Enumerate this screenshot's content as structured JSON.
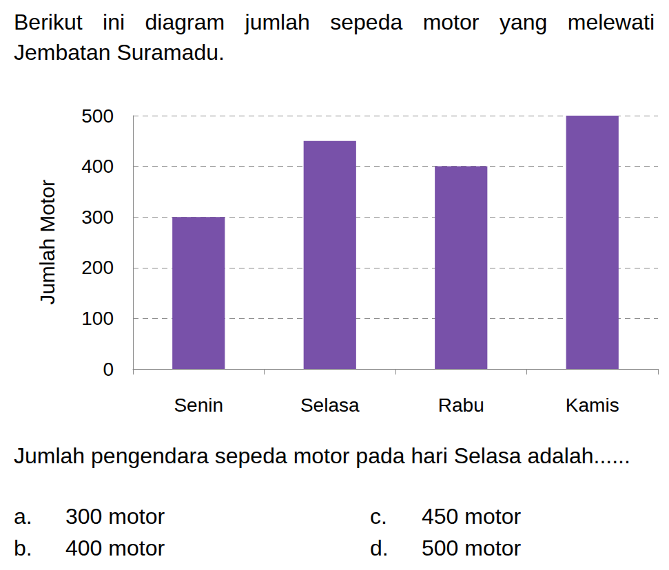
{
  "intro": "Berikut ini diagram jumlah sepeda motor yang melewati Jembatan Suramadu.",
  "chart_data": {
    "type": "bar",
    "categories": [
      "Senin",
      "Selasa",
      "Rabu",
      "Kamis"
    ],
    "values": [
      300,
      450,
      400,
      500
    ],
    "color": "#7851a9",
    "ylabel": "Jumlah Motor",
    "ylim": [
      0,
      500
    ],
    "yticks": [
      0,
      100,
      200,
      300,
      400,
      500
    ],
    "grid": true
  },
  "question": "Jumlah pengendara sepeda motor pada hari Selasa adalah......",
  "options": [
    {
      "label": "a.",
      "text": "300 motor"
    },
    {
      "label": "b.",
      "text": "400 motor"
    },
    {
      "label": "c.",
      "text": "450 motor"
    },
    {
      "label": "d.",
      "text": "500 motor"
    }
  ]
}
